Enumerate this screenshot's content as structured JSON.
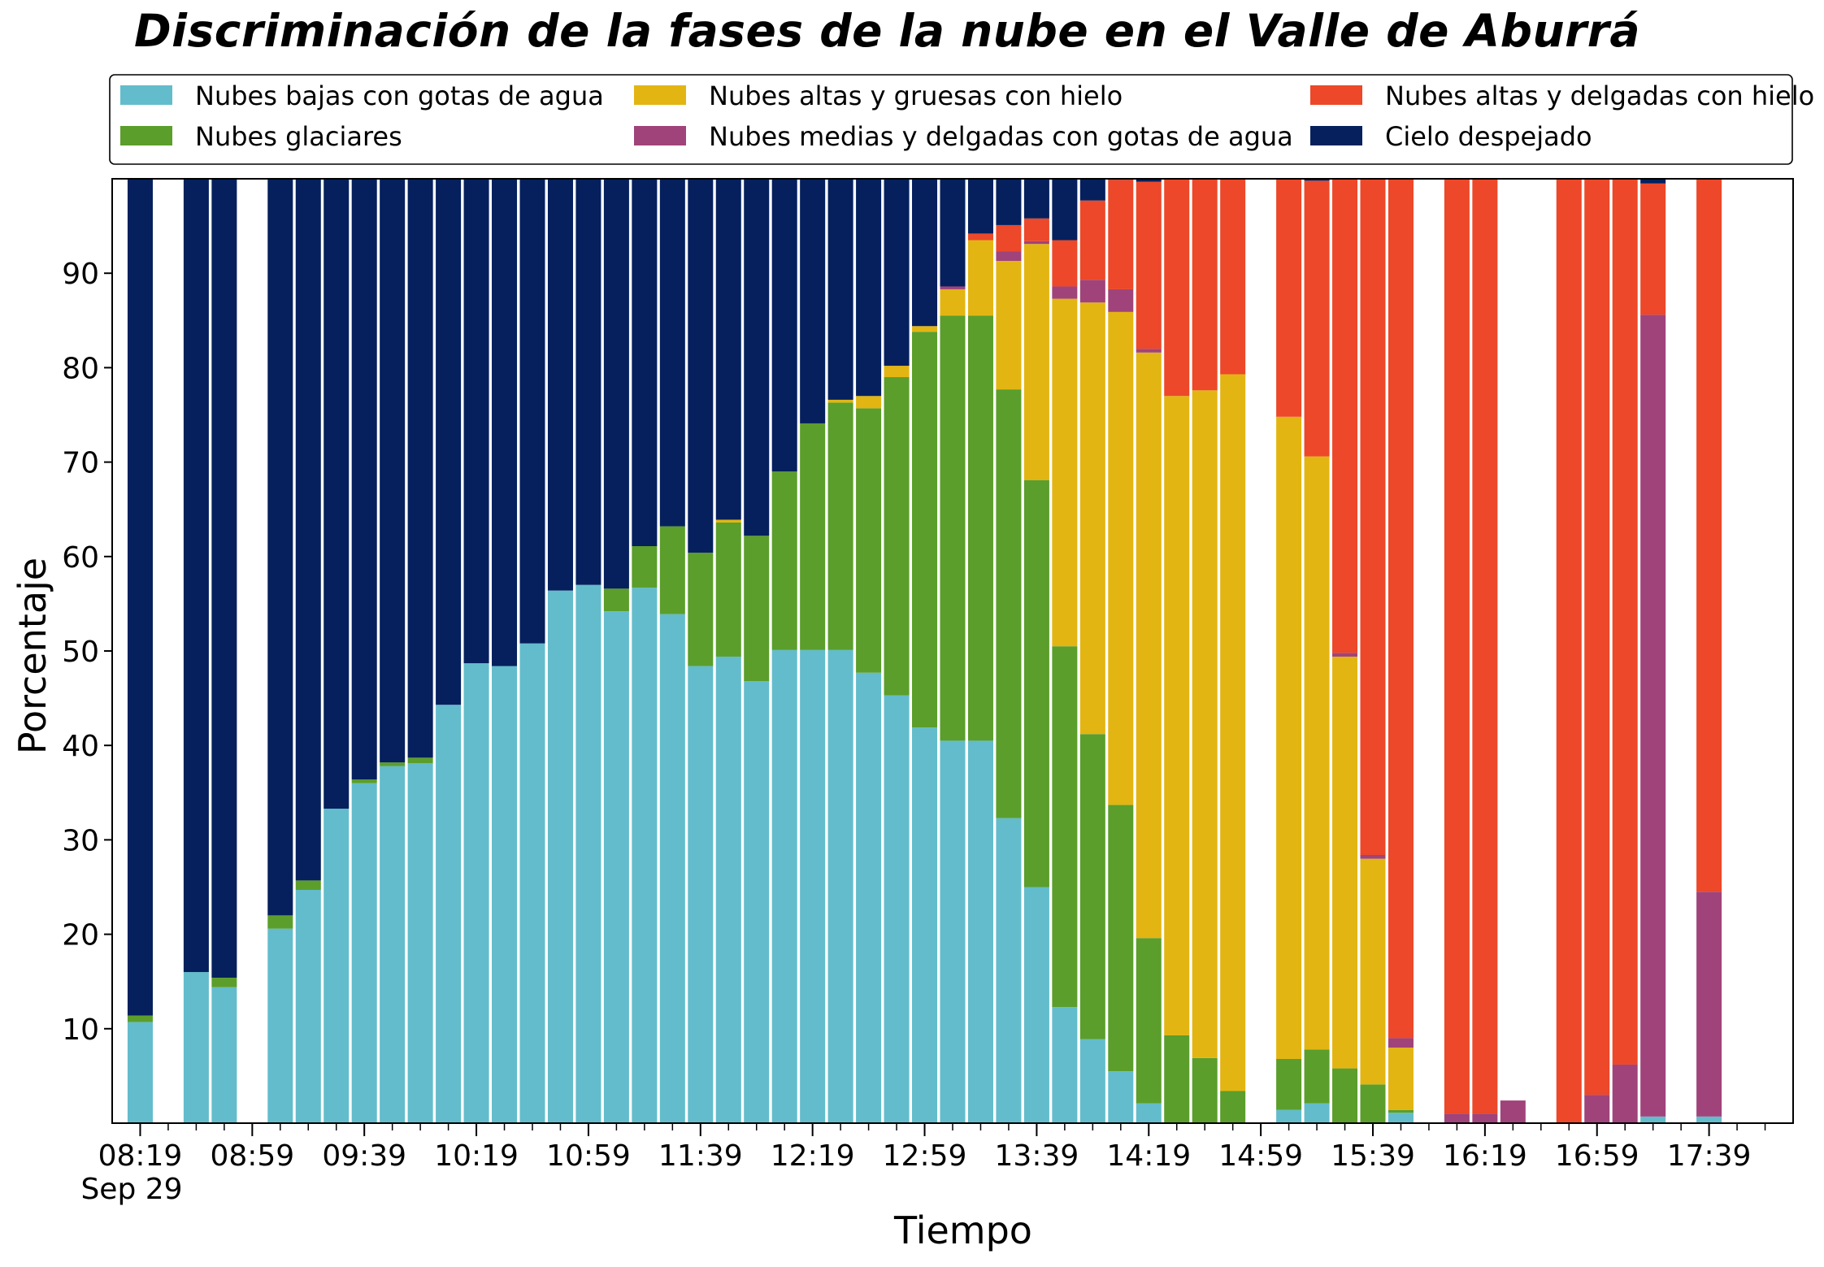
{
  "chart_data": {
    "type": "bar",
    "stacked": true,
    "title": "Discriminación de la fases de la nube en el Valle de Aburrá",
    "xlabel": "Tiempo",
    "ylabel": "Porcentaje",
    "ylim": [
      0,
      100
    ],
    "yticks": [
      10,
      20,
      30,
      40,
      50,
      60,
      70,
      80,
      90
    ],
    "xtick_labels": [
      "08:19",
      "08:59",
      "09:39",
      "10:19",
      "10:59",
      "11:39",
      "12:19",
      "12:59",
      "13:39",
      "14:19",
      "14:59",
      "15:39",
      "16:19",
      "16:59",
      "17:39"
    ],
    "xtick_date": "Sep 29",
    "x_start": "08:09",
    "x_end": "18:09",
    "legend_position": "top",
    "legend_columns": 3,
    "bar_width_minutes": 9,
    "series": [
      {
        "name": "Nubes bajas con gotas de agua",
        "color": "#63bccb"
      },
      {
        "name": "Nubes glaciares",
        "color": "#5b9e2b"
      },
      {
        "name": "Nubes altas y gruesas con hielo",
        "color": "#e3b512"
      },
      {
        "name": "Nubes medias y delgadas con gotas de agua",
        "color": "#a0437a"
      },
      {
        "name": "Nubes altas y delgadas con hielo",
        "color": "#ec4829"
      },
      {
        "name": "Cielo despejado",
        "color": "#05205d"
      }
    ],
    "bars": [
      {
        "time": "08:19",
        "values": [
          10.7,
          0.7,
          0,
          0,
          0,
          88.6
        ]
      },
      {
        "time": "08:39",
        "values": [
          16.0,
          0,
          0,
          0,
          0,
          84.0
        ]
      },
      {
        "time": "08:49",
        "values": [
          14.4,
          1.0,
          0,
          0,
          0,
          84.6
        ]
      },
      {
        "time": "09:09",
        "values": [
          20.6,
          1.4,
          0,
          0,
          0,
          78.0
        ]
      },
      {
        "time": "09:19",
        "values": [
          24.7,
          1.0,
          0,
          0,
          0,
          74.3
        ]
      },
      {
        "time": "09:29",
        "values": [
          33.3,
          0,
          0,
          0,
          0,
          66.7
        ]
      },
      {
        "time": "09:39",
        "values": [
          36.0,
          0.4,
          0,
          0,
          0,
          63.6
        ]
      },
      {
        "time": "09:49",
        "values": [
          37.8,
          0.4,
          0,
          0,
          0,
          61.8
        ]
      },
      {
        "time": "09:59",
        "values": [
          38.1,
          0.6,
          0,
          0,
          0,
          61.3
        ]
      },
      {
        "time": "10:09",
        "values": [
          44.3,
          0,
          0,
          0,
          0,
          55.7
        ]
      },
      {
        "time": "10:19",
        "values": [
          48.7,
          0,
          0,
          0,
          0,
          51.3
        ]
      },
      {
        "time": "10:29",
        "values": [
          48.4,
          0,
          0,
          0,
          0,
          51.6
        ]
      },
      {
        "time": "10:39",
        "values": [
          50.8,
          0,
          0,
          0,
          0,
          49.2
        ]
      },
      {
        "time": "10:49",
        "values": [
          56.4,
          0,
          0,
          0,
          0,
          43.6
        ]
      },
      {
        "time": "10:59",
        "values": [
          57.0,
          0,
          0,
          0,
          0,
          43.0
        ]
      },
      {
        "time": "11:09",
        "values": [
          54.2,
          2.4,
          0,
          0,
          0,
          43.4
        ]
      },
      {
        "time": "11:19",
        "values": [
          56.7,
          4.4,
          0,
          0,
          0,
          38.9
        ]
      },
      {
        "time": "11:29",
        "values": [
          53.9,
          9.3,
          0,
          0,
          0,
          36.8
        ]
      },
      {
        "time": "11:39",
        "values": [
          48.4,
          12.0,
          0,
          0,
          0,
          39.6
        ]
      },
      {
        "time": "11:49",
        "values": [
          49.4,
          14.2,
          0.3,
          0,
          0,
          36.1
        ]
      },
      {
        "time": "11:59",
        "values": [
          46.8,
          15.4,
          0,
          0,
          0,
          37.8
        ]
      },
      {
        "time": "12:09",
        "values": [
          50.1,
          18.9,
          0,
          0,
          0,
          31.0
        ]
      },
      {
        "time": "12:19",
        "values": [
          50.1,
          24.0,
          0,
          0,
          0,
          25.9
        ]
      },
      {
        "time": "12:29",
        "values": [
          50.1,
          26.2,
          0.3,
          0,
          0,
          23.4
        ]
      },
      {
        "time": "12:39",
        "values": [
          47.7,
          28.0,
          1.3,
          0,
          0,
          23.0
        ]
      },
      {
        "time": "12:49",
        "values": [
          45.3,
          33.7,
          1.2,
          0,
          0,
          19.8
        ]
      },
      {
        "time": "12:59",
        "values": [
          41.9,
          41.9,
          0.6,
          0,
          0,
          15.6
        ]
      },
      {
        "time": "13:09",
        "values": [
          40.5,
          45.0,
          2.8,
          0.3,
          0,
          11.4
        ]
      },
      {
        "time": "13:19",
        "values": [
          40.5,
          45.0,
          8.0,
          0,
          0.7,
          5.8
        ]
      },
      {
        "time": "13:29",
        "values": [
          32.3,
          45.4,
          13.6,
          1.0,
          2.8,
          4.9
        ]
      },
      {
        "time": "13:39",
        "values": [
          25.0,
          43.1,
          25.0,
          0.3,
          2.4,
          4.2
        ]
      },
      {
        "time": "13:49",
        "values": [
          12.3,
          38.2,
          36.8,
          1.3,
          4.9,
          6.5
        ]
      },
      {
        "time": "13:59",
        "values": [
          8.9,
          32.3,
          45.7,
          2.4,
          8.4,
          2.3
        ]
      },
      {
        "time": "14:09",
        "values": [
          5.5,
          28.2,
          52.2,
          2.4,
          11.6,
          0.1
        ]
      },
      {
        "time": "14:19",
        "values": [
          2.1,
          17.5,
          62.0,
          0.4,
          17.7,
          0.3
        ]
      },
      {
        "time": "14:29",
        "values": [
          0,
          9.3,
          67.7,
          0,
          23.0,
          0
        ]
      },
      {
        "time": "14:39",
        "values": [
          0,
          6.9,
          70.7,
          0,
          22.4,
          0
        ]
      },
      {
        "time": "14:49",
        "values": [
          0,
          3.4,
          75.9,
          0,
          20.7,
          0
        ]
      },
      {
        "time": "15:09",
        "values": [
          1.4,
          5.4,
          68.0,
          0,
          25.2,
          0
        ]
      },
      {
        "time": "15:19",
        "values": [
          2.1,
          5.7,
          62.8,
          0,
          29.2,
          0.2
        ]
      },
      {
        "time": "15:29",
        "values": [
          0,
          5.8,
          43.6,
          0.4,
          50.2,
          0
        ]
      },
      {
        "time": "15:39",
        "values": [
          0,
          4.1,
          23.9,
          0.4,
          71.6,
          0
        ]
      },
      {
        "time": "15:49",
        "values": [
          1.1,
          0.3,
          6.6,
          1.0,
          91.0,
          0
        ]
      },
      {
        "time": "16:09",
        "values": [
          0,
          0,
          0,
          1.0,
          99.0,
          0
        ]
      },
      {
        "time": "16:19",
        "values": [
          0,
          0,
          0,
          1.0,
          99.0,
          0
        ]
      },
      {
        "time": "16:29",
        "values": [
          0,
          0,
          0,
          2.4,
          0,
          0
        ]
      },
      {
        "time": "16:49",
        "values": [
          0,
          0,
          0,
          0,
          100.0,
          0
        ]
      },
      {
        "time": "16:59",
        "values": [
          0,
          0,
          0,
          3.0,
          97.0,
          0
        ]
      },
      {
        "time": "17:09",
        "values": [
          0,
          0,
          0,
          6.2,
          93.8,
          0
        ]
      },
      {
        "time": "17:19",
        "values": [
          0.7,
          0,
          0,
          84.9,
          13.9,
          0.5
        ]
      },
      {
        "time": "17:39",
        "values": [
          0.7,
          0,
          0,
          23.8,
          75.5,
          0
        ]
      }
    ]
  }
}
